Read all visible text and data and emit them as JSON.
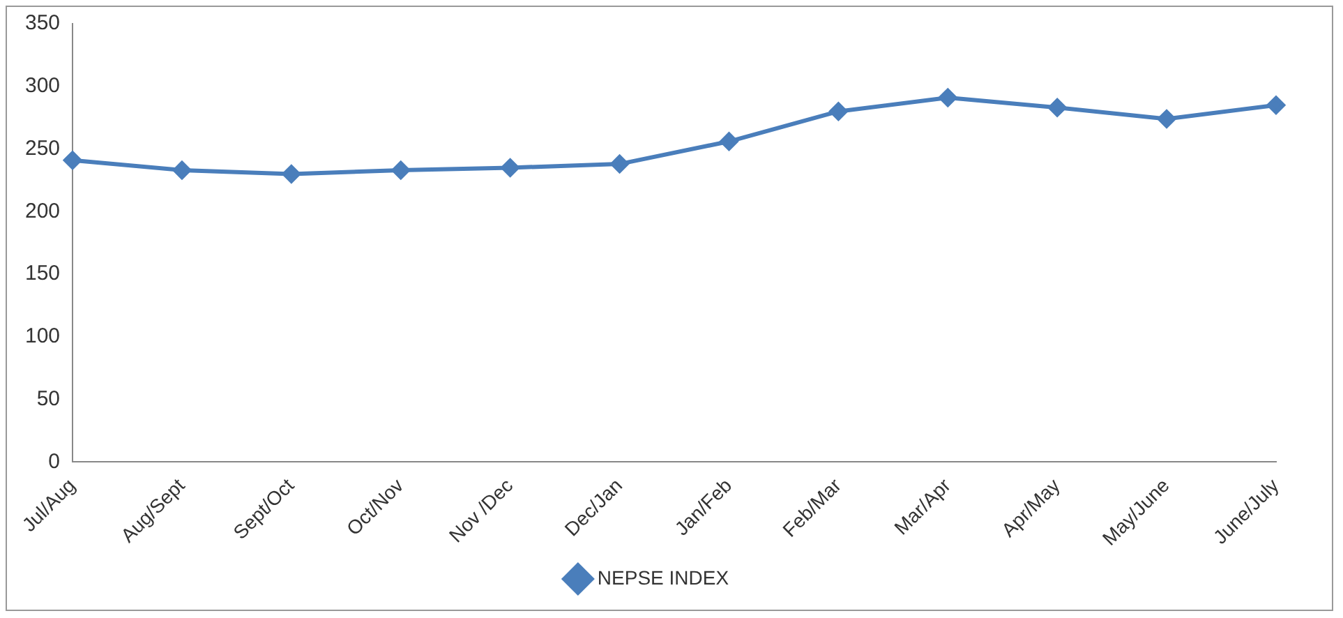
{
  "chart_data": {
    "type": "line",
    "categories": [
      "Jul/Aug",
      "Aug/Sept",
      "Sept/Oct",
      "Oct/Nov",
      "Nov /Dec",
      "Dec/Jan",
      "Jan/Feb",
      "Feb/Mar",
      "Mar/Apr",
      "Apr/May",
      "May/June",
      "June/July"
    ],
    "series": [
      {
        "name": "NEPSE INDEX",
        "color": "#4a7ebb",
        "values": [
          241,
          233,
          230,
          233,
          235,
          238,
          256,
          280,
          291,
          283,
          274,
          285
        ]
      }
    ],
    "ylim": [
      0,
      350
    ],
    "yticks": [
      0,
      50,
      100,
      150,
      200,
      250,
      300,
      350
    ],
    "grid": false,
    "legend": "bottom",
    "marker": "diamond",
    "line_style": "solid"
  }
}
